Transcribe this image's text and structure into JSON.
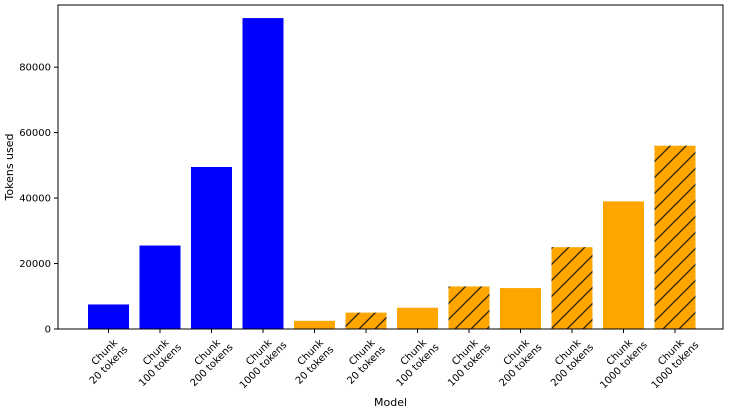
{
  "chart_data": {
    "type": "bar",
    "title": "",
    "xlabel": "Model",
    "ylabel": "Tokens used",
    "ylim": [
      0,
      99000
    ],
    "yticks": [
      0,
      20000,
      40000,
      60000,
      80000
    ],
    "ytick_labels": [
      "0",
      "20000",
      "40000",
      "60000",
      "80000"
    ],
    "grid": false,
    "legend": "none",
    "categories": [
      "Chunk 20 tokens",
      "Chunk 100 tokens",
      "Chunk 200 tokens",
      "Chunk 1000 tokens",
      "Chunk 20 tokens",
      "Chunk 20 tokens",
      "Chunk 100 tokens",
      "Chunk 100 tokens",
      "Chunk 200 tokens",
      "Chunk 200 tokens",
      "Chunk 1000 tokens",
      "Chunk 1000 tokens"
    ],
    "category_lines": [
      [
        "Chunk",
        "20 tokens"
      ],
      [
        "Chunk",
        "100 tokens"
      ],
      [
        "Chunk",
        "200 tokens"
      ],
      [
        "Chunk",
        "1000 tokens"
      ],
      [
        "Chunk",
        "20 tokens"
      ],
      [
        "Chunk",
        "20 tokens"
      ],
      [
        "Chunk",
        "100 tokens"
      ],
      [
        "Chunk",
        "100 tokens"
      ],
      [
        "Chunk",
        "200 tokens"
      ],
      [
        "Chunk",
        "200 tokens"
      ],
      [
        "Chunk",
        "1000 tokens"
      ],
      [
        "Chunk",
        "1000 tokens"
      ]
    ],
    "values": [
      7500,
      25500,
      49500,
      95000,
      2500,
      5000,
      6500,
      13000,
      12500,
      25000,
      39000,
      56000
    ],
    "colors": [
      "#0000ff",
      "#0000ff",
      "#0000ff",
      "#0000ff",
      "#ffa500",
      "#ffa500",
      "#ffa500",
      "#ffa500",
      "#ffa500",
      "#ffa500",
      "#ffa500",
      "#ffa500"
    ],
    "hatched": [
      false,
      false,
      false,
      false,
      false,
      true,
      false,
      true,
      false,
      true,
      false,
      true
    ],
    "hatch_color": "#3a2a1a"
  }
}
